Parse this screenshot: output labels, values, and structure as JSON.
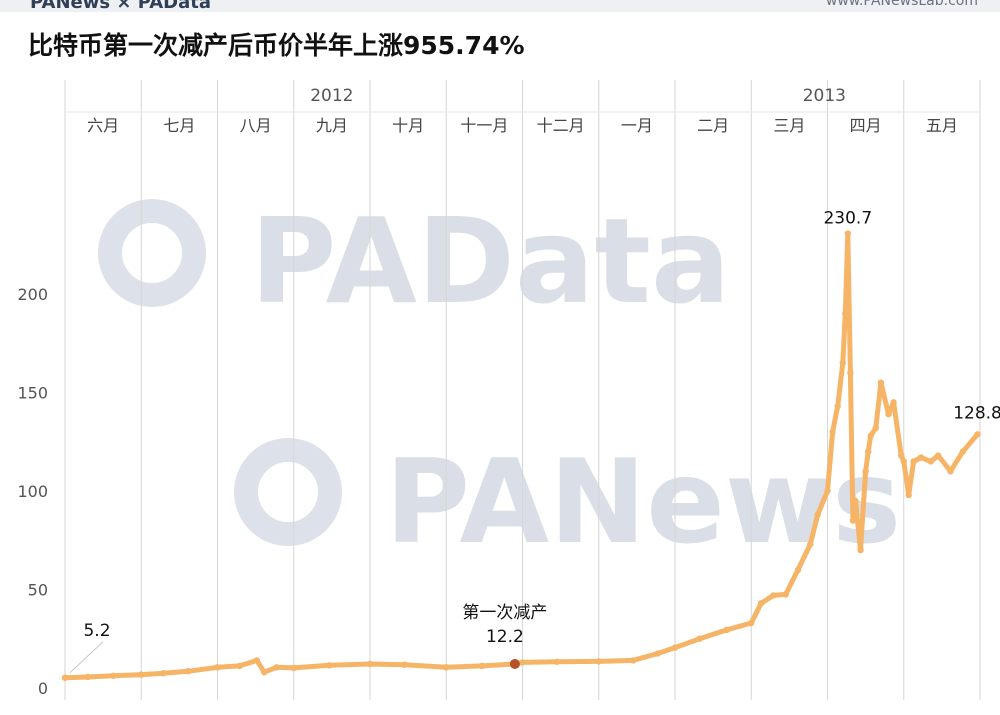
{
  "header": {
    "brand": "PANews × PAData",
    "site": "www.PANewsLab.com"
  },
  "watermarks": [
    "PAData",
    "PANews"
  ],
  "chart_data": {
    "type": "line",
    "title": "比特币第一次减产后币价半年上涨955.74%",
    "xlabel": "",
    "ylabel": "",
    "ylim": [
      0,
      240
    ],
    "yticks": [
      0,
      50,
      100,
      150,
      200
    ],
    "grid": "vertical month separators",
    "years": [
      {
        "label": "2012",
        "months": [
          "六月",
          "七月",
          "八月",
          "九月",
          "十月",
          "十一月",
          "十二月"
        ]
      },
      {
        "label": "2013",
        "months": [
          "一月",
          "二月",
          "三月",
          "四月",
          "五月"
        ]
      }
    ],
    "color": "#f6b466",
    "series": [
      {
        "x": [
          "2012-06-01",
          "2012-06-10",
          "2012-06-20",
          "2012-07-01",
          "2012-07-10",
          "2012-07-20",
          "2012-08-01",
          "2012-08-10",
          "2012-08-17",
          "2012-08-20",
          "2012-08-25",
          "2012-09-01",
          "2012-09-15",
          "2012-10-01",
          "2012-10-15",
          "2012-11-01",
          "2012-11-15",
          "2012-11-28",
          "2012-12-01",
          "2012-12-15",
          "2013-01-01",
          "2013-01-15",
          "2013-01-25",
          "2013-02-01",
          "2013-02-10",
          "2013-02-20",
          "2013-03-01",
          "2013-03-05",
          "2013-03-10",
          "2013-03-15",
          "2013-03-20",
          "2013-03-25",
          "2013-03-28",
          "2013-04-01",
          "2013-04-03",
          "2013-04-05",
          "2013-04-07",
          "2013-04-08",
          "2013-04-09",
          "2013-04-10",
          "2013-04-11",
          "2013-04-12",
          "2013-04-14",
          "2013-04-16",
          "2013-04-17",
          "2013-04-18",
          "2013-04-20",
          "2013-04-22",
          "2013-04-25",
          "2013-04-27",
          "2013-04-30",
          "2013-05-01",
          "2013-05-03",
          "2013-05-05",
          "2013-05-08",
          "2013-05-12",
          "2013-05-15",
          "2013-05-20",
          "2013-05-25",
          "2013-05-31"
        ],
        "values": [
          5.2,
          5.6,
          6.2,
          6.8,
          7.5,
          8.5,
          10.5,
          11.2,
          14.0,
          8.0,
          10.5,
          10.2,
          11.5,
          12.2,
          11.8,
          10.5,
          11.2,
          12.2,
          13.0,
          13.3,
          13.5,
          14.0,
          17.5,
          20.5,
          25.0,
          29.5,
          33.0,
          43.0,
          47.0,
          47.5,
          60.0,
          73.0,
          88.0,
          100.0,
          130.0,
          143.0,
          165.0,
          190.0,
          230.7,
          160.0,
          85.0,
          95.0,
          70.0,
          110.0,
          120.0,
          128.0,
          132.0,
          155.0,
          139.0,
          145.0,
          118.0,
          115.0,
          98.0,
          115.0,
          117.0,
          115.0,
          118.0,
          110.0,
          120.0,
          128.8
        ]
      }
    ],
    "annotations": [
      {
        "x": "2012-06-01",
        "y": 5.2,
        "label": "5.2"
      },
      {
        "x": "2012-11-28",
        "y": 12.2,
        "label": "12.2",
        "note": "第一次减产",
        "marker": "#b5522b"
      },
      {
        "x": "2013-04-09",
        "y": 230.7,
        "label": "230.7"
      },
      {
        "x": "2013-05-31",
        "y": 128.8,
        "label": "128.8"
      }
    ]
  }
}
